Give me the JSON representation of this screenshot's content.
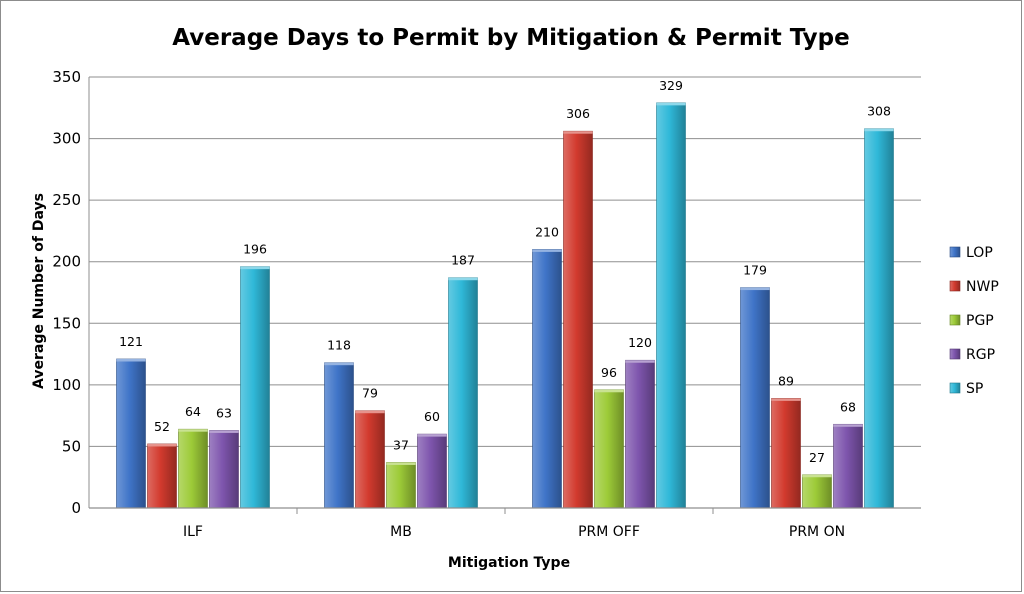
{
  "chart_data": {
    "type": "bar",
    "title": "Average Days to Permit by Mitigation & Permit Type",
    "xlabel": "Mitigation Type",
    "ylabel": "Average Number of Days",
    "ylim": [
      0,
      350
    ],
    "ytick_step": 50,
    "grid": true,
    "legend_position": "right",
    "categories": [
      "ILF",
      "MB",
      "PRM OFF",
      "PRM ON"
    ],
    "series": [
      {
        "name": "LOP",
        "values": [
          121,
          118,
          210,
          179
        ],
        "color": "#3f74c8"
      },
      {
        "name": "NWP",
        "values": [
          52,
          79,
          306,
          89
        ],
        "color": "#d23a2e"
      },
      {
        "name": "PGP",
        "values": [
          64,
          37,
          96,
          27
        ],
        "color": "#9dcb38"
      },
      {
        "name": "RGP",
        "values": [
          63,
          60,
          120,
          68
        ],
        "color": "#7e55ad"
      },
      {
        "name": "SP",
        "values": [
          196,
          187,
          329,
          308
        ],
        "color": "#2fb8d8"
      }
    ]
  }
}
